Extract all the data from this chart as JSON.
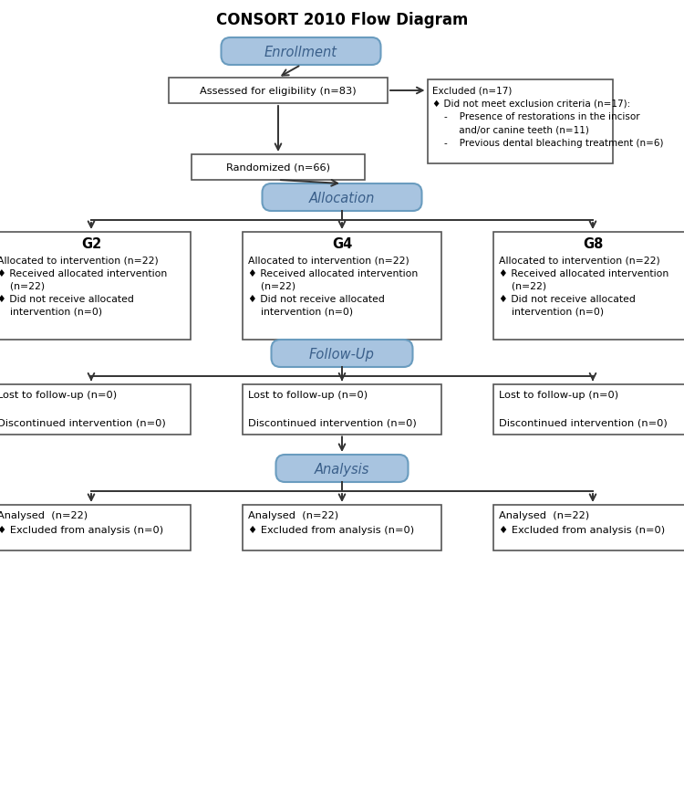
{
  "title": "CONSORT 2010 Flow Diagram",
  "title_fontsize": 12,
  "title_fontweight": "bold",
  "blue_box_color": "#a8c4e0",
  "blue_box_edge": "#6a9cbf",
  "white_box_color": "#ffffff",
  "white_box_edge": "#555555",
  "text_color": "#000000",
  "arrow_color": "#333333",
  "enrollment_label": "Enrollment",
  "allocation_label": "Allocation",
  "followup_label": "Follow-Up",
  "analysis_label": "Analysis",
  "assessed_text": "Assessed for eligibility (n=83)",
  "randomized_text": "Randomized (n=66)",
  "g2_title": "G2",
  "g4_title": "G4",
  "g8_title": "G8",
  "group_body": "Allocated to intervention (n=22)\n♦ Received allocated intervention\n    (n=22)\n♦ Did not receive allocated\n    intervention (n=0)",
  "followup_box_text": "Lost to follow-up (n=0)\n\nDiscontinued intervention (n=0)",
  "analysis_box_text": "Analysed  (n=22)\n♦ Excluded from analysis (n=0)",
  "excl_line1": "Excluded (n=17)",
  "excl_line2": "♦ Did not meet exclusion criteria (n=17):",
  "excl_line3": "    -    Presence of restorations in the incisor",
  "excl_line4": "         and/or canine teeth (n=11)",
  "excl_line5": "    -    Previous dental bleaching treatment (n=6)"
}
